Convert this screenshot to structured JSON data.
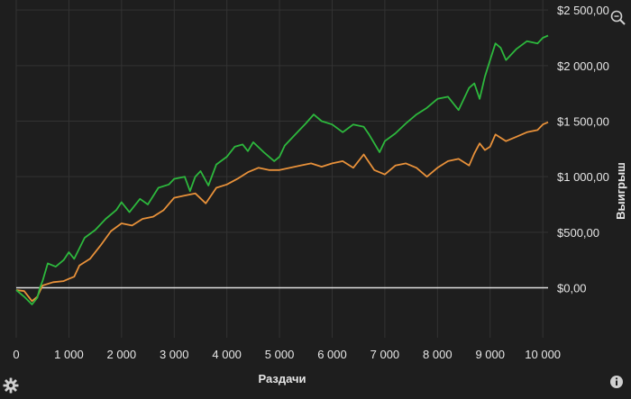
{
  "chart_data": {
    "type": "line",
    "xlabel": "Раздачи",
    "ylabel": "Выигрыш",
    "xlim": [
      0,
      10100
    ],
    "ylim": [
      -450,
      2550
    ],
    "x_ticks": [
      0,
      1000,
      2000,
      3000,
      4000,
      5000,
      6000,
      7000,
      8000,
      9000,
      10000
    ],
    "x_tick_labels": [
      "0",
      "1 000",
      "2 000",
      "3 000",
      "4 000",
      "5 000",
      "6 000",
      "7 000",
      "8 000",
      "9 000",
      "10 000"
    ],
    "y_ticks": [
      0,
      500,
      1000,
      1500,
      2000,
      2500
    ],
    "y_tick_labels": [
      "$0,00",
      "$500,00",
      "$1 000,00",
      "$1 500,00",
      "$2 000,00",
      "$2 500,00"
    ],
    "y_axis_position": "right",
    "grid": true,
    "series": [
      {
        "color": "#2db83d",
        "x": [
          0,
          150,
          300,
          400,
          450,
          500,
          600,
          750,
          900,
          1000,
          1100,
          1300,
          1500,
          1700,
          1900,
          2000,
          2150,
          2350,
          2500,
          2700,
          2900,
          3000,
          3200,
          3300,
          3400,
          3500,
          3650,
          3800,
          4000,
          4150,
          4300,
          4400,
          4500,
          4700,
          4900,
          5000,
          5100,
          5300,
          5500,
          5650,
          5800,
          6000,
          6200,
          6400,
          6600,
          6700,
          6900,
          7000,
          7200,
          7400,
          7600,
          7800,
          8000,
          8200,
          8400,
          8600,
          8700,
          8800,
          8900,
          9000,
          9100,
          9200,
          9300,
          9500,
          9700,
          9900,
          10000,
          10100
        ],
        "y": [
          -20,
          -80,
          -150,
          -90,
          0,
          60,
          220,
          190,
          250,
          320,
          260,
          450,
          520,
          620,
          700,
          770,
          680,
          800,
          750,
          900,
          930,
          980,
          1000,
          870,
          1000,
          1050,
          920,
          1110,
          1180,
          1270,
          1290,
          1230,
          1310,
          1220,
          1140,
          1180,
          1280,
          1380,
          1480,
          1560,
          1500,
          1470,
          1400,
          1470,
          1450,
          1380,
          1220,
          1320,
          1390,
          1480,
          1560,
          1620,
          1700,
          1720,
          1600,
          1800,
          1840,
          1700,
          1900,
          2050,
          2200,
          2160,
          2050,
          2150,
          2220,
          2200,
          2250,
          2270
        ]
      },
      {
        "color": "#e8913a",
        "x": [
          0,
          150,
          300,
          400,
          500,
          700,
          900,
          1000,
          1100,
          1200,
          1400,
          1600,
          1800,
          2000,
          2200,
          2400,
          2600,
          2800,
          3000,
          3200,
          3400,
          3600,
          3800,
          4000,
          4200,
          4400,
          4600,
          4800,
          5000,
          5200,
          5400,
          5600,
          5800,
          6000,
          6200,
          6400,
          6600,
          6800,
          7000,
          7200,
          7400,
          7600,
          7800,
          8000,
          8200,
          8400,
          8600,
          8700,
          8800,
          8900,
          9000,
          9100,
          9300,
          9500,
          9700,
          9900,
          10000,
          10100
        ],
        "y": [
          -20,
          -30,
          -120,
          -80,
          20,
          50,
          60,
          80,
          100,
          200,
          260,
          380,
          510,
          580,
          560,
          620,
          640,
          700,
          810,
          830,
          850,
          760,
          900,
          930,
          980,
          1040,
          1080,
          1060,
          1060,
          1080,
          1100,
          1120,
          1090,
          1120,
          1140,
          1080,
          1200,
          1060,
          1020,
          1100,
          1120,
          1080,
          1000,
          1080,
          1140,
          1160,
          1100,
          1210,
          1300,
          1240,
          1270,
          1380,
          1320,
          1360,
          1400,
          1420,
          1470,
          1490
        ]
      }
    ]
  }
}
